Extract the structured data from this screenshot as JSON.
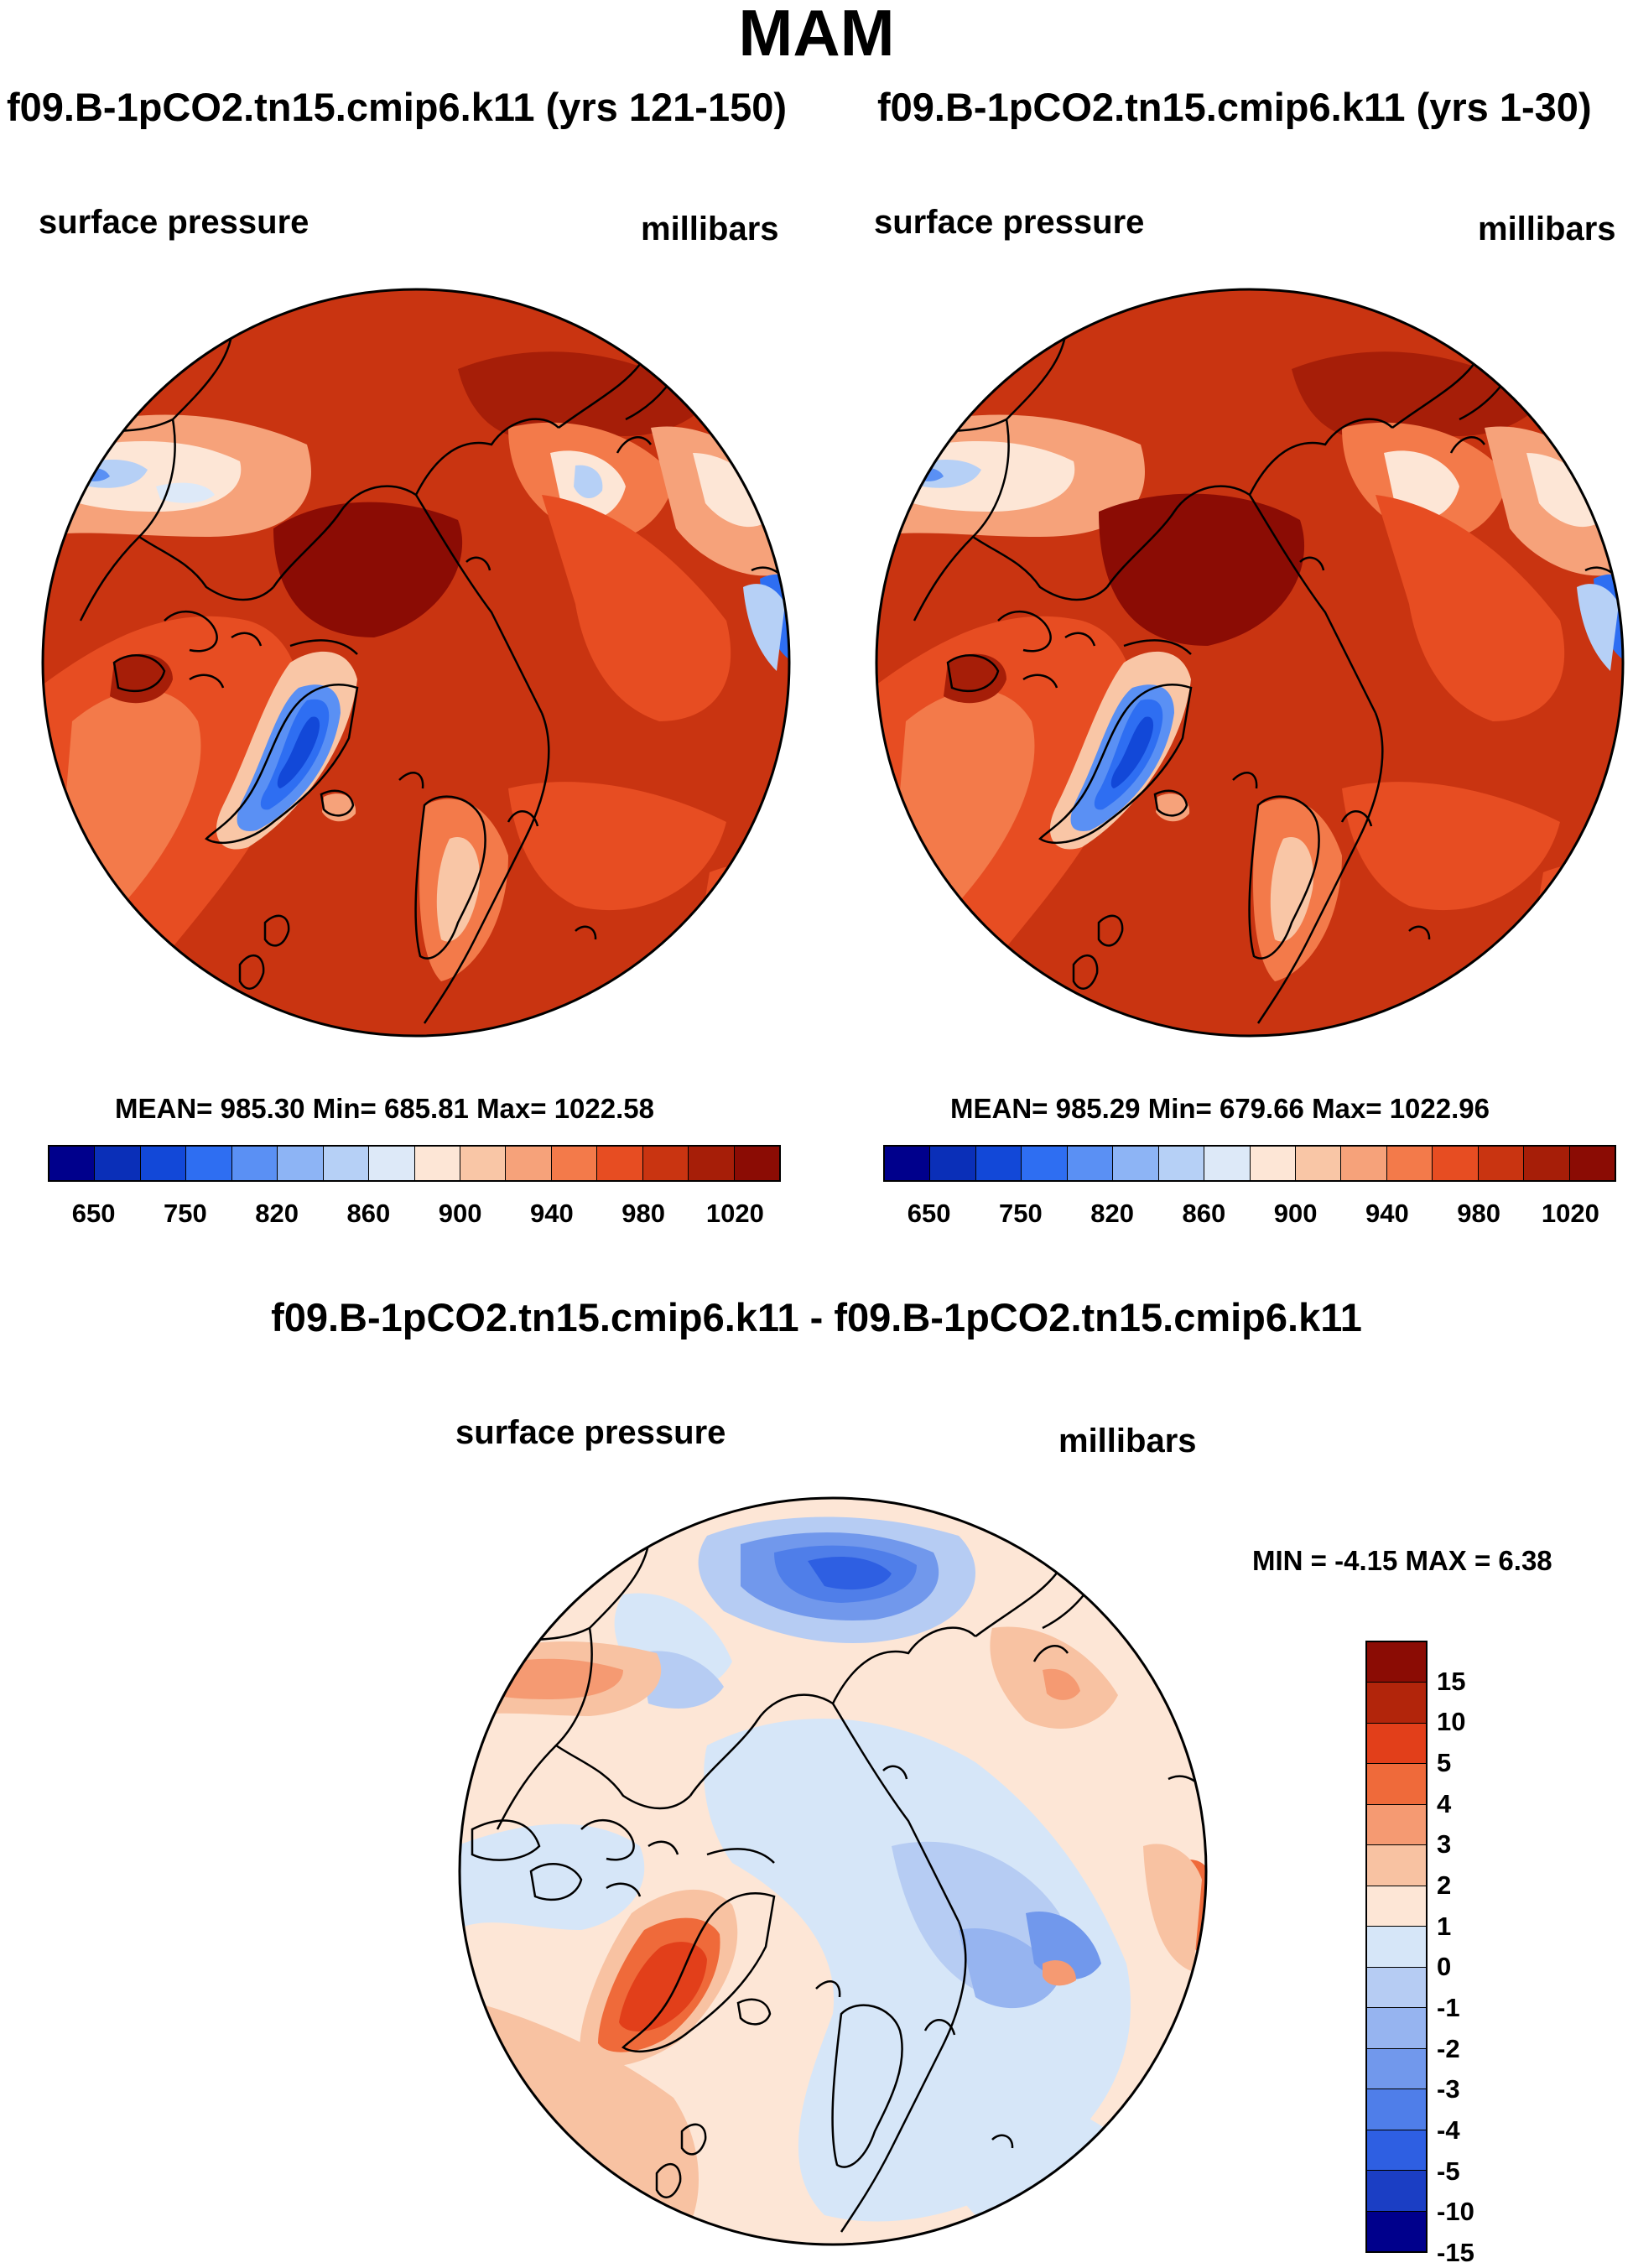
{
  "season": "MAM",
  "panels": [
    {
      "title": "f09.B-1pCO2.tn15.cmip6.k11 (yrs 121-150)",
      "field": "surface pressure",
      "units": "millibars",
      "stats": "MEAN= 985.30  Min= 685.81  Max= 1022.58"
    },
    {
      "title": "f09.B-1pCO2.tn15.cmip6.k11 (yrs 1-30)",
      "field": "surface pressure",
      "units": "millibars",
      "stats": "MEAN= 985.29  Min= 679.66  Max= 1022.96"
    }
  ],
  "colorbar": {
    "colors": [
      "#00008c",
      "#0a2fb8",
      "#1248d8",
      "#2e6ef2",
      "#5a90f4",
      "#8db4f5",
      "#b6d0f6",
      "#dde9f8",
      "#fde6d6",
      "#f9c6a6",
      "#f6a27a",
      "#f37a4a",
      "#e74d22",
      "#c93411",
      "#a61e08",
      "#8b0c04"
    ],
    "ticks": [
      "650",
      "750",
      "820",
      "860",
      "900",
      "940",
      "980",
      "1020"
    ]
  },
  "difference": {
    "title": "f09.B-1pCO2.tn15.cmip6.k11 - f09.B-1pCO2.tn15.cmip6.k11",
    "field": "surface pressure",
    "units": "millibars",
    "minmax": "MIN =  -4.15 MAX =   6.38",
    "colorbar": {
      "colors": [
        "#8b0c04",
        "#b2250b",
        "#e23f1a",
        "#ef6a3a",
        "#f59a72",
        "#f8c2a2",
        "#fde6d6",
        "#d6e6f8",
        "#b6ccf3",
        "#96b4f0",
        "#7198ec",
        "#4f7ee9",
        "#2e5fe2",
        "#1b3ec4",
        "#00008c"
      ],
      "ticks": [
        "15",
        "10",
        "5",
        "4",
        "3",
        "2",
        "1",
        "0",
        "-1",
        "-2",
        "-3",
        "-4",
        "-5",
        "-10",
        "-15"
      ]
    }
  }
}
